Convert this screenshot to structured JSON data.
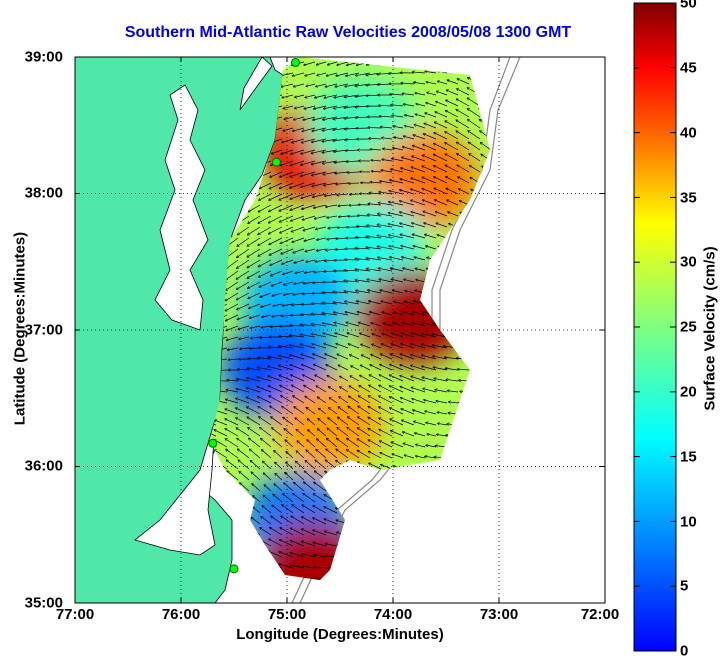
{
  "title": "Southern Mid-Atlantic Raw Velocities 2008/05/08 1300 GMT",
  "map": {
    "xlabel": "Longitude (Degrees:Minutes)",
    "ylabel": "Latitude (Degrees:Minutes)",
    "x_ticks": [
      "77:00",
      "76:00",
      "75:00",
      "74:00",
      "73:00",
      "72:00"
    ],
    "y_ticks": [
      "39:00",
      "38:00",
      "37:00",
      "36:00",
      "35:00"
    ],
    "lon_range": [
      -77,
      -72
    ],
    "lat_range": [
      35,
      39
    ],
    "land_color": "#50e8a8",
    "grid": "dotted"
  },
  "colorbar": {
    "label": "Surface Velocity (cm/s)",
    "ticks": [
      "0",
      "5",
      "10",
      "15",
      "20",
      "25",
      "30",
      "35",
      "40",
      "45",
      "50"
    ],
    "range": [
      0,
      50
    ],
    "colormap": "jet"
  },
  "stations": [
    {
      "lon": -74.92,
      "lat": 38.96
    },
    {
      "lon": -75.1,
      "lat": 38.23
    },
    {
      "lon": -75.7,
      "lat": 36.17
    },
    {
      "lon": -75.5,
      "lat": 35.25
    }
  ],
  "field_regions": [
    {
      "lon": -74.7,
      "lat": 38.3,
      "speed": 45
    },
    {
      "lon": -74.3,
      "lat": 38.5,
      "speed": 22
    },
    {
      "lon": -73.7,
      "lat": 38.1,
      "speed": 38
    },
    {
      "lon": -74.2,
      "lat": 37.6,
      "speed": 20
    },
    {
      "lon": -73.8,
      "lat": 37.1,
      "speed": 48
    },
    {
      "lon": -74.9,
      "lat": 37.2,
      "speed": 15
    },
    {
      "lon": -75.1,
      "lat": 36.7,
      "speed": 10
    },
    {
      "lon": -74.6,
      "lat": 36.3,
      "speed": 36
    },
    {
      "lon": -74.9,
      "lat": 35.6,
      "speed": 12
    },
    {
      "lon": -74.75,
      "lat": 35.25,
      "speed": 48
    }
  ]
}
